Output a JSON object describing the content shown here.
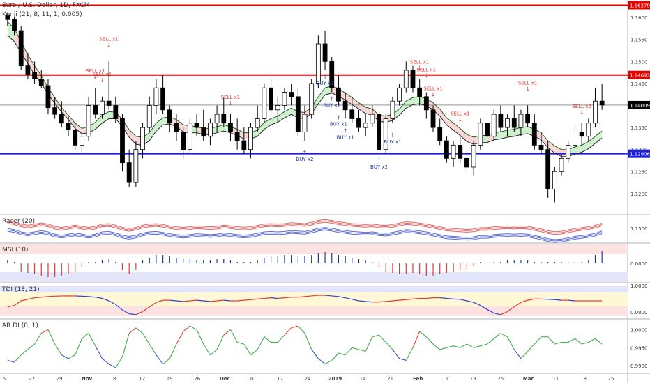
{
  "header": {
    "symbol_line": "Euro / U.S. Dollar, 1D, FXCM",
    "indicator_line": "Kenji (21, 8, 11, 1, 0.005)"
  },
  "colors": {
    "bull": "#ffffff",
    "bear": "#000000",
    "sell": "#e53935",
    "buy": "#1e3a9c",
    "upper_band": "#e06666",
    "lower_band": "#5b6ad6",
    "cloud_green": "#a9e3a9",
    "cloud_red": "#f4b6b6"
  },
  "panes": {
    "price": {
      "price_lines": [
        {
          "value": 1.16279,
          "label": "1.16279",
          "color": "#e00000"
        },
        {
          "value": 1.14693,
          "label": "1.14693",
          "color": "#e00000"
        },
        {
          "value": 1.12906,
          "label": "1.12906",
          "color": "#1a1ae0"
        }
      ],
      "current": {
        "value": 1.14009,
        "label": "1.14009"
      },
      "y_ticks": [
        "1.1600",
        "1.1550",
        "1.1500",
        "1.1450",
        "1.1400",
        "1.1350",
        "1.1300",
        "1.1250",
        "1.1200"
      ]
    },
    "racer": {
      "title": "Racer (20)",
      "y_ticks": [
        "1.1500"
      ]
    },
    "msi": {
      "title": "MSI (10)",
      "y_ticks": [
        "0.0000"
      ]
    },
    "tdi": {
      "title": "TDI (13, 21)",
      "y_ticks": [
        "1.0000",
        "0.0000"
      ]
    },
    "ardi": {
      "title": "AR DI (8, 1)",
      "y_ticks": [
        "1.0000",
        "0.9950",
        "0.9900"
      ]
    }
  },
  "x_axis": {
    "labels": [
      "5",
      "22",
      "29",
      "Nov",
      "8",
      "12",
      "19",
      "26",
      "Dec",
      "10",
      "17",
      "24",
      "2019",
      "14",
      "21",
      "Feb",
      "11",
      "18",
      "25",
      "Mar",
      "11",
      "18",
      "25"
    ]
  },
  "signals": [
    {
      "text": "SELL x1",
      "kind": "sell"
    },
    {
      "text": "SELL x1",
      "kind": "sell"
    },
    {
      "text": "SELL x1",
      "kind": "sell"
    },
    {
      "text": "SELL x1",
      "kind": "sell"
    },
    {
      "text": "SELL x1",
      "kind": "sell"
    },
    {
      "text": "SELL x1",
      "kind": "sell"
    },
    {
      "text": "SELL x1",
      "kind": "sell"
    },
    {
      "text": "SELL x1",
      "kind": "sell"
    },
    {
      "text": "SELL x1",
      "kind": "sell"
    },
    {
      "text": "SELL x2",
      "kind": "sell"
    },
    {
      "text": "BUY x2",
      "kind": "buy"
    },
    {
      "text": "BUY x2",
      "kind": "buy"
    },
    {
      "text": "BUY x1",
      "kind": "buy"
    },
    {
      "text": "BUY x2",
      "kind": "buy"
    },
    {
      "text": "BUY x1",
      "kind": "buy"
    },
    {
      "text": "BUY x1",
      "kind": "buy"
    },
    {
      "text": "BUY x1",
      "kind": "buy"
    }
  ],
  "chart_data": {
    "type": "candlestick",
    "title": "Euro / U.S. Dollar, 1D, FXCM",
    "ylim": [
      1.1165,
      1.1635
    ],
    "ohlc": [
      [
        1.1605,
        1.1612,
        1.158,
        1.1595
      ],
      [
        1.1595,
        1.16,
        1.156,
        1.157
      ],
      [
        1.157,
        1.158,
        1.148,
        1.149
      ],
      [
        1.149,
        1.152,
        1.146,
        1.147
      ],
      [
        1.1475,
        1.15,
        1.145,
        1.146
      ],
      [
        1.146,
        1.148,
        1.144,
        1.1445
      ],
      [
        1.1445,
        1.146,
        1.138,
        1.1395
      ],
      [
        1.1395,
        1.142,
        1.137,
        1.138
      ],
      [
        1.138,
        1.141,
        1.135,
        1.136
      ],
      [
        1.136,
        1.1375,
        1.133,
        1.1345
      ],
      [
        1.1345,
        1.136,
        1.13,
        1.131
      ],
      [
        1.131,
        1.134,
        1.129,
        1.133
      ],
      [
        1.133,
        1.142,
        1.132,
        1.14
      ],
      [
        1.14,
        1.144,
        1.137,
        1.138
      ],
      [
        1.138,
        1.142,
        1.137,
        1.141
      ],
      [
        1.141,
        1.15,
        1.139,
        1.14
      ],
      [
        1.14,
        1.142,
        1.136,
        1.137
      ],
      [
        1.137,
        1.138,
        1.125,
        1.127
      ],
      [
        1.127,
        1.13,
        1.1215,
        1.1225
      ],
      [
        1.1225,
        1.132,
        1.1215,
        1.13
      ],
      [
        1.13,
        1.136,
        1.128,
        1.135
      ],
      [
        1.135,
        1.142,
        1.134,
        1.14
      ],
      [
        1.14,
        1.146,
        1.138,
        1.144
      ],
      [
        1.144,
        1.147,
        1.138,
        1.139
      ],
      [
        1.139,
        1.14,
        1.134,
        1.136
      ],
      [
        1.136,
        1.138,
        1.132,
        1.134
      ],
      [
        1.134,
        1.135,
        1.128,
        1.13
      ],
      [
        1.13,
        1.137,
        1.129,
        1.136
      ],
      [
        1.136,
        1.138,
        1.133,
        1.135
      ],
      [
        1.135,
        1.139,
        1.132,
        1.133
      ],
      [
        1.133,
        1.137,
        1.131,
        1.136
      ],
      [
        1.136,
        1.14,
        1.134,
        1.138
      ],
      [
        1.138,
        1.142,
        1.135,
        1.136
      ],
      [
        1.136,
        1.138,
        1.132,
        1.134
      ],
      [
        1.134,
        1.137,
        1.13,
        1.132
      ],
      [
        1.132,
        1.135,
        1.129,
        1.13
      ],
      [
        1.13,
        1.136,
        1.128,
        1.135
      ],
      [
        1.135,
        1.14,
        1.134,
        1.137
      ],
      [
        1.137,
        1.145,
        1.136,
        1.144
      ],
      [
        1.144,
        1.146,
        1.138,
        1.139
      ],
      [
        1.139,
        1.142,
        1.136,
        1.14
      ],
      [
        1.14,
        1.144,
        1.139,
        1.143
      ],
      [
        1.143,
        1.145,
        1.14,
        1.142
      ],
      [
        1.142,
        1.144,
        1.133,
        1.134
      ],
      [
        1.134,
        1.14,
        1.132,
        1.138
      ],
      [
        1.138,
        1.146,
        1.137,
        1.145
      ],
      [
        1.145,
        1.156,
        1.144,
        1.154
      ],
      [
        1.154,
        1.157,
        1.148,
        1.15
      ],
      [
        1.15,
        1.151,
        1.143,
        1.144
      ],
      [
        1.144,
        1.147,
        1.14,
        1.141
      ],
      [
        1.141,
        1.143,
        1.137,
        1.139
      ],
      [
        1.139,
        1.142,
        1.136,
        1.137
      ],
      [
        1.137,
        1.139,
        1.134,
        1.135
      ],
      [
        1.135,
        1.138,
        1.133,
        1.136
      ],
      [
        1.136,
        1.14,
        1.135,
        1.138
      ],
      [
        1.138,
        1.139,
        1.129,
        1.13
      ],
      [
        1.13,
        1.138,
        1.129,
        1.137
      ],
      [
        1.137,
        1.142,
        1.136,
        1.141
      ],
      [
        1.141,
        1.145,
        1.14,
        1.144
      ],
      [
        1.144,
        1.15,
        1.143,
        1.148
      ],
      [
        1.148,
        1.149,
        1.143,
        1.144
      ],
      [
        1.144,
        1.146,
        1.14,
        1.142
      ],
      [
        1.142,
        1.143,
        1.137,
        1.139
      ],
      [
        1.139,
        1.14,
        1.134,
        1.135
      ],
      [
        1.135,
        1.137,
        1.131,
        1.132
      ],
      [
        1.132,
        1.133,
        1.127,
        1.128
      ],
      [
        1.128,
        1.132,
        1.126,
        1.131
      ],
      [
        1.131,
        1.133,
        1.127,
        1.128
      ],
      [
        1.128,
        1.13,
        1.125,
        1.126
      ],
      [
        1.126,
        1.132,
        1.124,
        1.131
      ],
      [
        1.131,
        1.137,
        1.13,
        1.136
      ],
      [
        1.136,
        1.138,
        1.132,
        1.133
      ],
      [
        1.133,
        1.139,
        1.132,
        1.138
      ],
      [
        1.138,
        1.14,
        1.134,
        1.135
      ],
      [
        1.135,
        1.138,
        1.133,
        1.137
      ],
      [
        1.137,
        1.14,
        1.134,
        1.135
      ],
      [
        1.135,
        1.139,
        1.133,
        1.138
      ],
      [
        1.138,
        1.14,
        1.135,
        1.136
      ],
      [
        1.136,
        1.138,
        1.13,
        1.131
      ],
      [
        1.131,
        1.134,
        1.129,
        1.13
      ],
      [
        1.13,
        1.132,
        1.119,
        1.121
      ],
      [
        1.121,
        1.126,
        1.118,
        1.125
      ],
      [
        1.125,
        1.129,
        1.124,
        1.128
      ],
      [
        1.128,
        1.132,
        1.127,
        1.131
      ],
      [
        1.131,
        1.135,
        1.13,
        1.134
      ],
      [
        1.134,
        1.136,
        1.131,
        1.133
      ],
      [
        1.133,
        1.137,
        1.132,
        1.136
      ],
      [
        1.136,
        1.144,
        1.135,
        1.141
      ],
      [
        1.141,
        1.145,
        1.139,
        1.1401
      ]
    ],
    "upper_line": [
      1.159,
      1.1575,
      1.1545,
      1.1515,
      1.149,
      1.1468,
      1.144,
      1.1418,
      1.1395,
      1.1378,
      1.136,
      1.1348,
      1.1352,
      1.1362,
      1.1378,
      1.1386,
      1.1385,
      1.1368,
      1.1345,
      1.133,
      1.1328,
      1.1338,
      1.136,
      1.1372,
      1.1374,
      1.1368,
      1.1356,
      1.1354,
      1.1352,
      1.1348,
      1.1348,
      1.1352,
      1.1356,
      1.1352,
      1.1346,
      1.1338,
      1.1338,
      1.1344,
      1.1362,
      1.137,
      1.1376,
      1.1386,
      1.1394,
      1.1386,
      1.1384,
      1.1396,
      1.142,
      1.144,
      1.1444,
      1.1438,
      1.1428,
      1.1418,
      1.1406,
      1.1396,
      1.1392,
      1.1378,
      1.1376,
      1.138,
      1.1392,
      1.141,
      1.1418,
      1.142,
      1.1416,
      1.1406,
      1.1392,
      1.1372,
      1.136,
      1.1348,
      1.1334,
      1.1328,
      1.1332,
      1.1332,
      1.1338,
      1.134,
      1.1344,
      1.1346,
      1.135,
      1.1352,
      1.1346,
      1.1338,
      1.132,
      1.1308,
      1.13,
      1.13,
      1.1306,
      1.131,
      1.1318,
      1.133,
      1.1342
    ],
    "lower_line": [
      1.156,
      1.1545,
      1.152,
      1.1495,
      1.147,
      1.145,
      1.1425,
      1.1405,
      1.1385,
      1.1368,
      1.1348,
      1.1336,
      1.1338,
      1.1346,
      1.136,
      1.137,
      1.137,
      1.1352,
      1.1328,
      1.1312,
      1.131,
      1.132,
      1.1342,
      1.1356,
      1.1358,
      1.1352,
      1.134,
      1.1338,
      1.1338,
      1.1334,
      1.1334,
      1.1338,
      1.1342,
      1.1338,
      1.1332,
      1.1324,
      1.1324,
      1.133,
      1.1346,
      1.1356,
      1.1362,
      1.1372,
      1.138,
      1.1372,
      1.137,
      1.1382,
      1.1404,
      1.1424,
      1.1428,
      1.1422,
      1.1412,
      1.1402,
      1.1392,
      1.1382,
      1.1378,
      1.1364,
      1.1362,
      1.1366,
      1.1378,
      1.1394,
      1.1402,
      1.1404,
      1.14,
      1.139,
      1.1376,
      1.1356,
      1.1344,
      1.1332,
      1.1318,
      1.1312,
      1.1316,
      1.1316,
      1.1322,
      1.1324,
      1.1328,
      1.133,
      1.1334,
      1.1336,
      1.133,
      1.1322,
      1.1304,
      1.1292,
      1.1284,
      1.1284,
      1.129,
      1.1294,
      1.1302,
      1.1314,
      1.1326
    ],
    "racer": {
      "upper": [
        1.1535,
        1.153,
        1.152,
        1.1515,
        1.152,
        1.1525,
        1.152,
        1.151,
        1.1505,
        1.151,
        1.1515,
        1.151,
        1.1505,
        1.151,
        1.152,
        1.1522,
        1.1515,
        1.1505,
        1.15,
        1.1505,
        1.1515,
        1.152,
        1.1522,
        1.1518,
        1.1512,
        1.1508,
        1.1505,
        1.1508,
        1.1512,
        1.151,
        1.1508,
        1.151,
        1.1515,
        1.1512,
        1.1508,
        1.1506,
        1.1508,
        1.1514,
        1.152,
        1.1522,
        1.152,
        1.1522,
        1.1526,
        1.1524,
        1.1522,
        1.1528,
        1.1536,
        1.154,
        1.1536,
        1.153,
        1.1526,
        1.1522,
        1.152,
        1.1518,
        1.152,
        1.1516,
        1.1514,
        1.1518,
        1.1524,
        1.153,
        1.1528,
        1.1524,
        1.152,
        1.1514,
        1.1508,
        1.1502,
        1.15,
        1.1498,
        1.1496,
        1.1498,
        1.1504,
        1.1504,
        1.1508,
        1.151,
        1.1512,
        1.151,
        1.1512,
        1.151,
        1.1504,
        1.1498,
        1.149,
        1.1486,
        1.1488,
        1.1494,
        1.15,
        1.1504,
        1.1508,
        1.1514,
        1.1524
      ],
      "lower": [
        1.15,
        1.1495,
        1.1485,
        1.148,
        1.1485,
        1.149,
        1.1485,
        1.1475,
        1.147,
        1.1475,
        1.148,
        1.1475,
        1.147,
        1.1475,
        1.1485,
        1.1487,
        1.148,
        1.147,
        1.1465,
        1.147,
        1.148,
        1.1485,
        1.1487,
        1.1483,
        1.1477,
        1.1473,
        1.147,
        1.1473,
        1.1477,
        1.1475,
        1.1473,
        1.1475,
        1.148,
        1.1477,
        1.1473,
        1.1471,
        1.1473,
        1.1479,
        1.1485,
        1.1487,
        1.1485,
        1.1487,
        1.1491,
        1.1489,
        1.1487,
        1.1493,
        1.1501,
        1.1505,
        1.1501,
        1.1495,
        1.1491,
        1.1487,
        1.1485,
        1.1483,
        1.1485,
        1.1481,
        1.1479,
        1.1483,
        1.1489,
        1.1495,
        1.1493,
        1.1489,
        1.1485,
        1.1479,
        1.1473,
        1.1467,
        1.1465,
        1.1463,
        1.1461,
        1.1463,
        1.1469,
        1.1469,
        1.1473,
        1.1475,
        1.1477,
        1.1475,
        1.1477,
        1.1475,
        1.1469,
        1.1463,
        1.1455,
        1.1451,
        1.1453,
        1.1459,
        1.1465,
        1.1469,
        1.1473,
        1.1479,
        1.1489
      ]
    },
    "msi": [
      0.2,
      0.1,
      -0.6,
      -0.7,
      -0.8,
      -0.9,
      -1.0,
      -1.0,
      -0.9,
      -0.8,
      -0.6,
      -0.3,
      0.1,
      0.1,
      0.2,
      0.3,
      0.1,
      -0.5,
      -0.8,
      -0.5,
      0.2,
      0.4,
      0.6,
      0.6,
      0.5,
      0.4,
      0.3,
      0.3,
      0.2,
      0.2,
      0.2,
      0.3,
      0.3,
      0.2,
      0.1,
      0.1,
      0.1,
      0.2,
      0.4,
      0.5,
      0.5,
      0.6,
      0.6,
      0.5,
      0.5,
      0.6,
      0.7,
      0.8,
      0.7,
      0.6,
      0.5,
      0.4,
      0.3,
      0.2,
      0.1,
      -0.3,
      -0.6,
      -0.7,
      -0.8,
      -0.8,
      -0.7,
      -0.8,
      -0.9,
      -0.9,
      -0.8,
      -0.7,
      -0.6,
      -0.5,
      -0.4,
      -0.2,
      0.1,
      0.1,
      0.1,
      0.1,
      0.2,
      0.2,
      0.2,
      0.2,
      0.1,
      0.1,
      0.1,
      0.1,
      0.1,
      0.1,
      0.1,
      0.1,
      0.2,
      0.6,
      0.9
    ],
    "tdi": [
      0.3,
      0.35,
      0.5,
      0.55,
      0.6,
      0.62,
      0.64,
      0.65,
      0.66,
      0.66,
      0.66,
      0.65,
      0.64,
      0.62,
      0.58,
      0.5,
      0.38,
      0.2,
      0.08,
      0.05,
      0.15,
      0.3,
      0.45,
      0.52,
      0.52,
      0.5,
      0.48,
      0.5,
      0.52,
      0.5,
      0.48,
      0.5,
      0.52,
      0.5,
      0.5,
      0.52,
      0.54,
      0.56,
      0.58,
      0.6,
      0.58,
      0.6,
      0.62,
      0.62,
      0.64,
      0.66,
      0.68,
      0.68,
      0.66,
      0.64,
      0.6,
      0.55,
      0.5,
      0.48,
      0.46,
      0.46,
      0.48,
      0.5,
      0.52,
      0.54,
      0.56,
      0.58,
      0.58,
      0.6,
      0.6,
      0.58,
      0.56,
      0.55,
      0.5,
      0.45,
      0.35,
      0.22,
      0.1,
      0.05,
      0.15,
      0.3,
      0.45,
      0.52,
      0.56,
      0.56,
      0.55,
      0.54,
      0.52,
      0.52,
      0.5,
      0.5,
      0.5,
      0.5,
      0.5
    ],
    "ardi": [
      0.9915,
      0.991,
      0.993,
      0.9945,
      0.996,
      0.999,
      1.0,
      0.996,
      0.993,
      0.992,
      0.993,
      0.9975,
      0.999,
      0.9955,
      0.992,
      0.9905,
      0.9895,
      0.9925,
      0.999,
      1.0005,
      0.999,
      0.996,
      0.993,
      0.9905,
      0.992,
      0.996,
      0.9995,
      1.001,
      1.0,
      0.996,
      0.993,
      0.9945,
      0.9985,
      1.0,
      0.9965,
      0.996,
      0.993,
      0.9945,
      0.998,
      0.9965,
      0.9965,
      0.9985,
      1.0005,
      1.001,
      0.999,
      0.9945,
      0.992,
      0.9905,
      0.9915,
      0.9935,
      0.993,
      0.995,
      0.9945,
      0.994,
      0.998,
      0.9985,
      0.9965,
      0.9945,
      0.992,
      0.9915,
      0.995,
      0.9995,
      0.998,
      0.996,
      0.9945,
      0.995,
      0.9955,
      0.995,
      0.996,
      0.995,
      0.9955,
      0.996,
      0.9975,
      0.999,
      0.998,
      0.9945,
      0.992,
      0.994,
      0.996,
      0.998,
      0.998,
      0.996,
      0.9965,
      0.9965,
      0.9975,
      0.996,
      0.9965,
      0.9975,
      0.996
    ]
  }
}
